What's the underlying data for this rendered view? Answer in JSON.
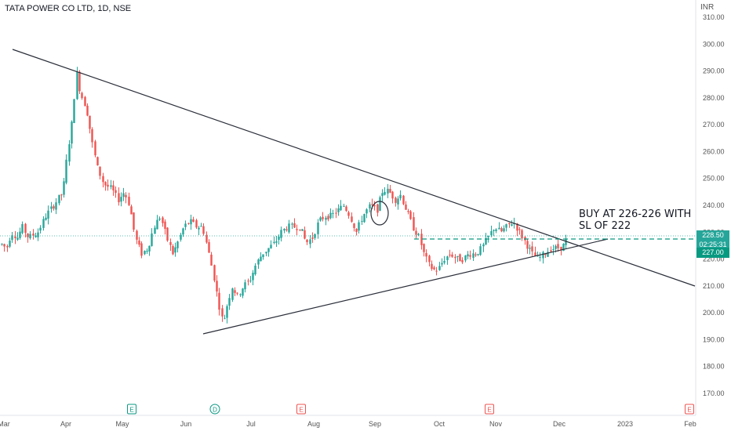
{
  "header": {
    "symbol": "TATA POWER CO LTD, 1D, NSE",
    "currency": "INR"
  },
  "chart_data": {
    "type": "candlestick",
    "y_axis_ticks": [
      "310.00",
      "300.00",
      "290.00",
      "280.00",
      "270.00",
      "260.00",
      "250.00",
      "240.00",
      "230.00",
      "220.00",
      "210.00",
      "200.00",
      "190.00",
      "180.00",
      "170.00"
    ],
    "ylim": [
      163,
      314
    ],
    "x_axis_labels": [
      "Mar",
      "Apr",
      "May",
      "Jun",
      "Jul",
      "Aug",
      "Sep",
      "Oct",
      "Nov",
      "Dec",
      "2023",
      "Feb"
    ],
    "last_price": "228.50",
    "countdown": "02:25:31",
    "level_label": "227.00",
    "annotation": "BUY AT 226-226 WITH\nSL OF 222",
    "event_markers": [
      {
        "label": "E",
        "type": "earnings"
      },
      {
        "label": "D",
        "type": "dividend"
      },
      {
        "label": "E",
        "type": "earnings"
      },
      {
        "label": "E",
        "type": "earnings"
      },
      {
        "label": "E",
        "type": "earnings"
      }
    ],
    "up_color": "#26a69a",
    "down_color": "#ef5350"
  }
}
